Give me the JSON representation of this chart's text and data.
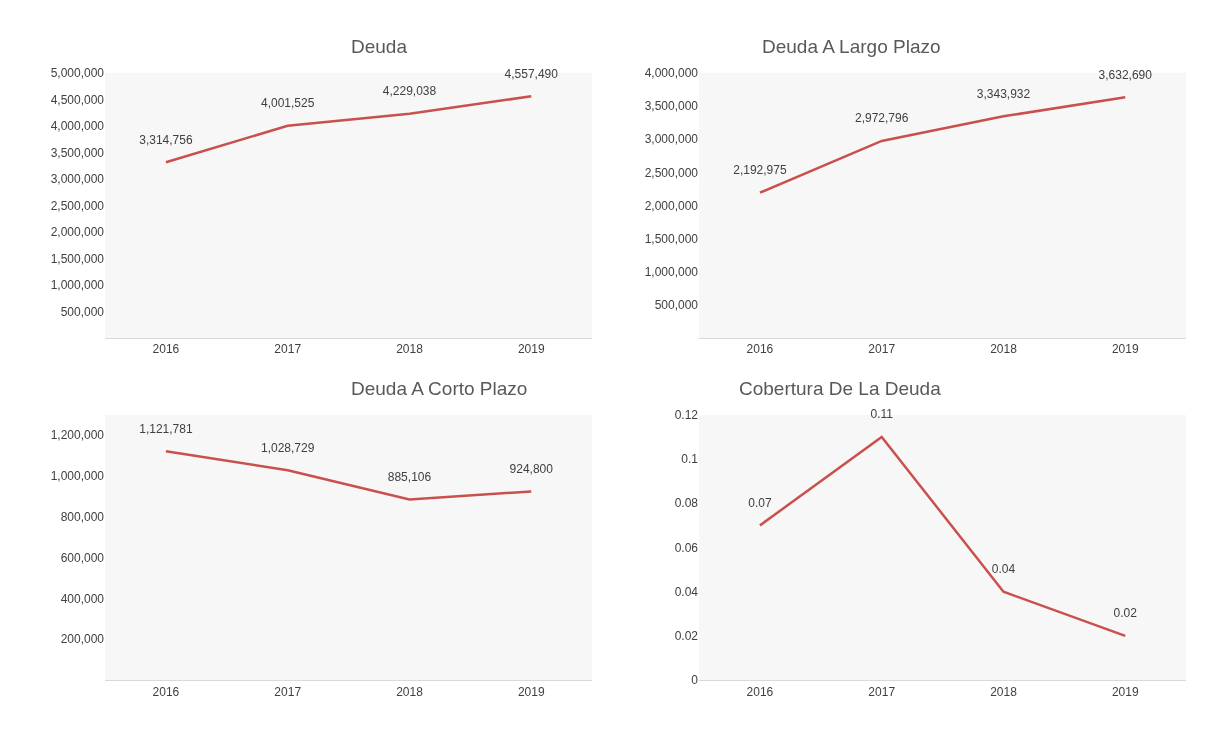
{
  "chart_data": [
    {
      "type": "line",
      "title": "Deuda",
      "categories": [
        "2016",
        "2017",
        "2018",
        "2019"
      ],
      "series": [
        {
          "color": "#c8514d",
          "values": [
            3314756,
            4001525,
            4229038,
            4557490
          ],
          "value_labels": [
            "3,314,756",
            "4,001,525",
            "4,229,038",
            "4,557,490"
          ]
        }
      ],
      "ylim": [
        0,
        5000000
      ],
      "yticks": [
        {
          "value": 0,
          "label": null
        },
        {
          "value": 500000,
          "label": "500,000"
        },
        {
          "value": 1000000,
          "label": "1,000,000"
        },
        {
          "value": 1500000,
          "label": "1,500,000"
        },
        {
          "value": 2000000,
          "label": "2,000,000"
        },
        {
          "value": 2500000,
          "label": "2,500,000"
        },
        {
          "value": 3000000,
          "label": "3,000,000"
        },
        {
          "value": 3500000,
          "label": "3,500,000"
        },
        {
          "value": 4000000,
          "label": "4,000,000"
        },
        {
          "value": 4500000,
          "label": "4,500,000"
        },
        {
          "value": 5000000,
          "label": "5,000,000"
        }
      ],
      "marker": "none"
    },
    {
      "type": "line",
      "title": "Deuda A Largo Plazo",
      "categories": [
        "2016",
        "2017",
        "2018",
        "2019"
      ],
      "series": [
        {
          "color": "#c8514d",
          "values": [
            2192975,
            2972796,
            3343932,
            3632690
          ],
          "value_labels": [
            "2,192,975",
            "2,972,796",
            "3,343,932",
            "3,632,690"
          ]
        }
      ],
      "ylim": [
        0,
        4000000
      ],
      "yticks": [
        {
          "value": 0,
          "label": null
        },
        {
          "value": 500000,
          "label": "500,000"
        },
        {
          "value": 1000000,
          "label": "1,000,000"
        },
        {
          "value": 1500000,
          "label": "1,500,000"
        },
        {
          "value": 2000000,
          "label": "2,000,000"
        },
        {
          "value": 2500000,
          "label": "2,500,000"
        },
        {
          "value": 3000000,
          "label": "3,000,000"
        },
        {
          "value": 3500000,
          "label": "3,500,000"
        },
        {
          "value": 4000000,
          "label": "4,000,000"
        }
      ],
      "marker": "none"
    },
    {
      "type": "line",
      "title": "Deuda A Corto Plazo",
      "categories": [
        "2016",
        "2017",
        "2018",
        "2019"
      ],
      "series": [
        {
          "color": "#c8514d",
          "values": [
            1121781,
            1028729,
            885106,
            924800
          ],
          "value_labels": [
            "1,121,781",
            "1,028,729",
            "885,106",
            "924,800"
          ]
        }
      ],
      "ylim": [
        0,
        1300000
      ],
      "yticks": [
        {
          "value": 0,
          "label": null
        },
        {
          "value": 200000,
          "label": "200,000"
        },
        {
          "value": 400000,
          "label": "400,000"
        },
        {
          "value": 600000,
          "label": "600,000"
        },
        {
          "value": 800000,
          "label": "800,000"
        },
        {
          "value": 1000000,
          "label": "1,000,000"
        },
        {
          "value": 1200000,
          "label": "1,200,000"
        }
      ],
      "marker": "none"
    },
    {
      "type": "line",
      "title": "Cobertura De La Deuda",
      "categories": [
        "2016",
        "2017",
        "2018",
        "2019"
      ],
      "series": [
        {
          "color": "#c8514d",
          "values": [
            0.07,
            0.11,
            0.04,
            0.02
          ]
        }
      ],
      "ylim": [
        0,
        0.12
      ],
      "yticks": [
        0,
        0.02,
        0.04,
        0.06,
        0.08,
        0.1,
        0.12
      ],
      "data_labels": true,
      "marker": "none"
    }
  ]
}
